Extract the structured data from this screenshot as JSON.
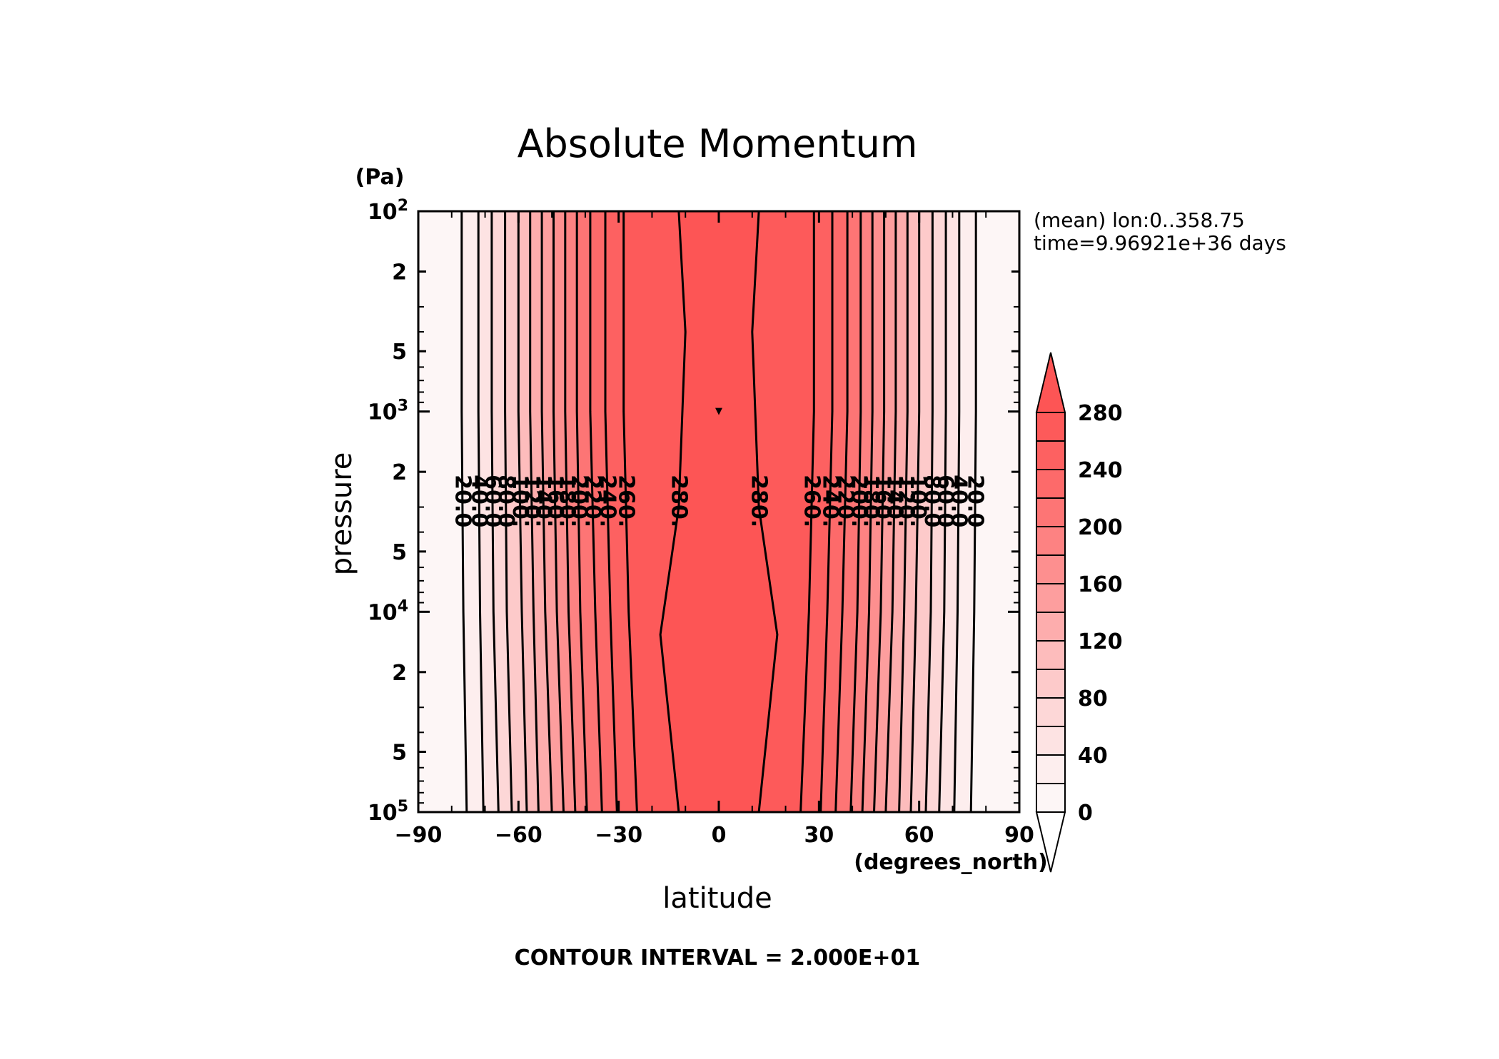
{
  "chart_data": {
    "type": "contour",
    "title": "Absolute Momentum",
    "xlabel": "latitude",
    "xunits": "(degrees_north)",
    "ylabel": "pressure",
    "yunits": "(Pa)",
    "xlim": [
      -90,
      90
    ],
    "x_ticks": [
      -90,
      -60,
      -30,
      0,
      30,
      60,
      90
    ],
    "x_tick_labels": [
      "−90",
      "−60",
      "−30",
      "0",
      "30",
      "60",
      "90"
    ],
    "ylim": [
      100,
      100000
    ],
    "yscale": "log",
    "y_ticks": [
      {
        "value": 100,
        "mantissa": "10",
        "exp": "2"
      },
      {
        "value": 200,
        "mantissa": "2",
        "exp": ""
      },
      {
        "value": 500,
        "mantissa": "5",
        "exp": ""
      },
      {
        "value": 1000,
        "mantissa": "10",
        "exp": "3"
      },
      {
        "value": 2000,
        "mantissa": "2",
        "exp": ""
      },
      {
        "value": 5000,
        "mantissa": "5",
        "exp": ""
      },
      {
        "value": 10000,
        "mantissa": "10",
        "exp": "4"
      },
      {
        "value": 20000,
        "mantissa": "2",
        "exp": ""
      },
      {
        "value": 50000,
        "mantissa": "5",
        "exp": ""
      },
      {
        "value": 100000,
        "mantissa": "10",
        "exp": "5"
      }
    ],
    "annotation_lines": [
      "(mean) lon:0..358.75",
      "time=9.96921e+36 days"
    ],
    "footer": "CONTOUR INTERVAL = 2.000E+01",
    "contour_interval": 20,
    "colorbar": {
      "levels": [
        0,
        20,
        40,
        60,
        80,
        100,
        120,
        140,
        160,
        180,
        200,
        220,
        240,
        260,
        280
      ],
      "tick_labels": [
        "0",
        "40",
        "80",
        "120",
        "160",
        "200",
        "240",
        "280"
      ],
      "colors": [
        "#fdf6f6",
        "#fdeeee",
        "#fde3e3",
        "#fdd7d7",
        "#fdcaca",
        "#fdbcbc",
        "#fdadad",
        "#fd9e9e",
        "#fd8f8f",
        "#fd8282",
        "#fd7575",
        "#fd6a6a",
        "#fd6161",
        "#fd5a5a",
        "#fd5555"
      ],
      "extend": "both"
    },
    "contours": [
      {
        "level": 20,
        "label": "20.0",
        "south_lat": [
          -77,
          -77,
          -76.5,
          -75.5
        ],
        "north_lat": [
          77,
          77,
          76.5,
          75.5
        ]
      },
      {
        "level": 40,
        "label": "40.0",
        "south_lat": [
          -72,
          -72,
          -71.5,
          -70.5
        ],
        "north_lat": [
          72,
          72,
          71.5,
          70.5
        ]
      },
      {
        "level": 60,
        "label": "60.0",
        "south_lat": [
          -68,
          -68,
          -67.5,
          -66
        ],
        "north_lat": [
          68,
          68,
          67.5,
          66
        ]
      },
      {
        "level": 80,
        "label": "80.0",
        "south_lat": [
          -64,
          -64,
          -63.5,
          -62
        ],
        "north_lat": [
          64,
          64,
          63.5,
          62
        ]
      },
      {
        "level": 100,
        "label": "100.",
        "south_lat": [
          -60,
          -60,
          -59,
          -57.5
        ],
        "north_lat": [
          60,
          60,
          59,
          57.5
        ]
      },
      {
        "level": 120,
        "label": "120.",
        "south_lat": [
          -56.5,
          -56.5,
          -55.5,
          -54
        ],
        "north_lat": [
          56.5,
          56.5,
          55.5,
          54
        ]
      },
      {
        "level": 140,
        "label": "140.",
        "south_lat": [
          -53,
          -53,
          -52,
          -50
        ],
        "north_lat": [
          53,
          53,
          52,
          50
        ]
      },
      {
        "level": 160,
        "label": "160.",
        "south_lat": [
          -49.5,
          -49.5,
          -48.5,
          -46.5
        ],
        "north_lat": [
          49.5,
          49.5,
          48.5,
          46.5
        ]
      },
      {
        "level": 180,
        "label": "180.",
        "south_lat": [
          -46,
          -46,
          -45,
          -43
        ],
        "north_lat": [
          46,
          46,
          45,
          43
        ]
      },
      {
        "level": 200,
        "label": "200.",
        "south_lat": [
          -42.5,
          -42.5,
          -41.5,
          -39.5
        ],
        "north_lat": [
          42.5,
          42.5,
          41.5,
          39.5
        ]
      },
      {
        "level": 220,
        "label": "220.",
        "south_lat": [
          -38.5,
          -38.5,
          -37,
          -35
        ],
        "north_lat": [
          38.5,
          38.5,
          37,
          35
        ]
      },
      {
        "level": 240,
        "label": "240.",
        "south_lat": [
          -34,
          -34,
          -32.5,
          -30.5
        ],
        "north_lat": [
          34,
          34,
          32.5,
          30.5
        ]
      },
      {
        "level": 260,
        "label": "260.",
        "south_lat": [
          -28.5,
          -28.5,
          -27,
          -24.5
        ],
        "north_lat": [
          28.5,
          28.5,
          27,
          24.5
        ]
      },
      {
        "level": 280,
        "label": "280.",
        "south_lat": [
          -12,
          -10,
          -12,
          -17.5,
          -12
        ],
        "north_lat": [
          12,
          10,
          12,
          17.5,
          12
        ],
        "pressures": [
          100,
          400,
          3000,
          13000,
          100000
        ]
      }
    ],
    "contour_pressures": [
      100,
      1000,
      10000,
      100000
    ]
  }
}
